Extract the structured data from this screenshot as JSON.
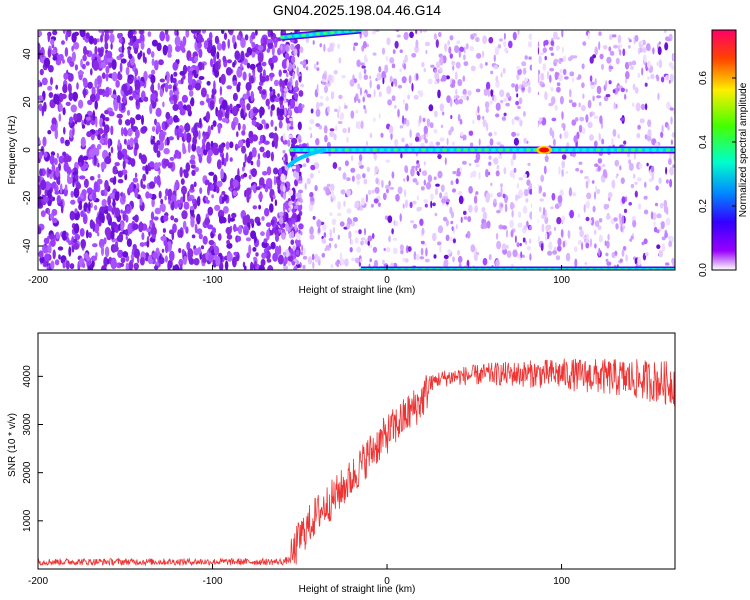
{
  "title": "GN04.2025.198.04.46.G14",
  "colors": {
    "snr_line": "#ee3333",
    "bright_line": "#ff0000"
  },
  "chart_data": [
    {
      "type": "heatmap",
      "title": "GN04.2025.198.04.46.G14",
      "xlabel": "Height of straight line (km)",
      "ylabel": "Frequency (Hz)",
      "xlim": [
        -200,
        165
      ],
      "ylim": [
        -50,
        50
      ],
      "xticks": [
        "-200",
        "-100",
        "0",
        "100"
      ],
      "yticks": [
        "-40",
        "-20",
        "0",
        "20",
        "40"
      ],
      "colorbar": {
        "label": "Normalized spectral amplitude",
        "range": [
          0,
          0.75
        ],
        "ticks": [
          "0.0",
          "0.2",
          "0.4",
          "0.6"
        ],
        "colormap": "rainbow"
      },
      "features": [
        {
          "name": "zero-frequency line",
          "x": [
            -55,
            165
          ],
          "y": [
            0,
            0
          ]
        },
        {
          "name": "upper aliased line",
          "x": [
            -60,
            -15
          ],
          "y": [
            47,
            50
          ]
        },
        {
          "name": "lower aliased line",
          "x": [
            -15,
            165
          ],
          "y": [
            -50,
            -50
          ]
        },
        {
          "name": "peak",
          "x": 90,
          "y": 0,
          "value": 0.75
        }
      ]
    },
    {
      "type": "line",
      "xlabel": "Height of straight line (km)",
      "ylabel": "SNR (10 * v/v)",
      "xlim": [
        -200,
        165
      ],
      "ylim": [
        0,
        4900
      ],
      "xticks": [
        "-200",
        "-100",
        "0",
        "100"
      ],
      "yticks": [
        "1000",
        "2000",
        "3000",
        "4000"
      ],
      "series": [
        {
          "x": [
            -200,
            -150,
            -100,
            -60,
            -55,
            -50,
            -40,
            -30,
            -20,
            -10,
            0,
            10,
            20,
            25,
            30,
            40,
            60,
            80,
            100,
            120,
            140,
            165
          ],
          "values": [
            150,
            150,
            150,
            150,
            200,
            650,
            1150,
            1500,
            1900,
            2400,
            2800,
            3150,
            3500,
            3850,
            3950,
            4000,
            4050,
            4050,
            4050,
            4000,
            3950,
            3850
          ]
        }
      ]
    }
  ]
}
